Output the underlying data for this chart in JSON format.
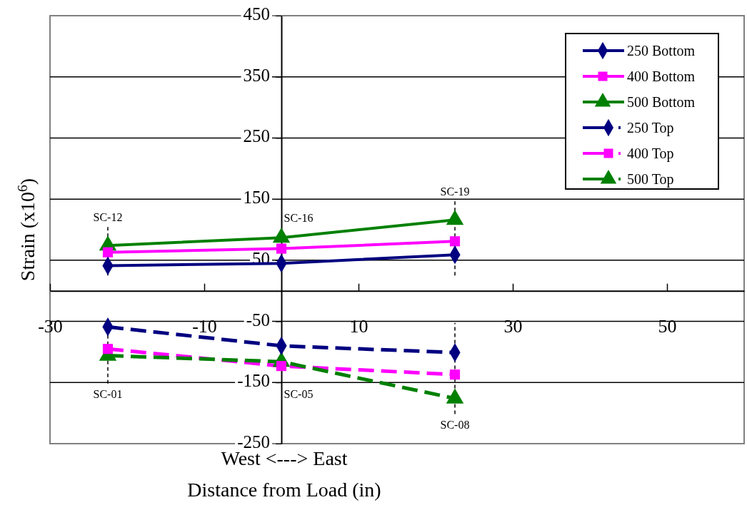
{
  "chart_data": {
    "type": "line",
    "xlabel": "Distance from Load (in)",
    "ylabel": "Strain (x10$^{6}$)",
    "x": [
      -22.5,
      0,
      22.5
    ],
    "xlim": [
      -30,
      60
    ],
    "xticks": [
      -30,
      -10,
      10,
      30,
      50
    ],
    "ylim": [
      -250,
      450
    ],
    "yticks": [
      450,
      350,
      250,
      150,
      50,
      -50,
      -150,
      -250
    ],
    "grid": "y",
    "legend": "top right",
    "series": [
      {
        "name": "250 Bottom",
        "color": "#000080",
        "marker": "diamond",
        "line_style": "solid",
        "values": [
          41,
          45,
          59
        ]
      },
      {
        "name": "400 Bottom",
        "color": "#ff00ff",
        "marker": "square",
        "line_style": "solid",
        "values": [
          63,
          69,
          81
        ]
      },
      {
        "name": "500 Bottom",
        "color": "#008000",
        "marker": "triangle",
        "line_style": "solid",
        "values": [
          74,
          87,
          116
        ]
      },
      {
        "name": "250 Top",
        "color": "#000080",
        "marker": "diamond",
        "line_style": "dashed",
        "values": [
          -59,
          -90,
          -101
        ]
      },
      {
        "name": "400 Top",
        "color": "#ff00ff",
        "marker": "square",
        "line_style": "dashed",
        "values": [
          -95,
          -123,
          -137
        ]
      },
      {
        "name": "500 Top",
        "color": "#008000",
        "marker": "triangle",
        "line_style": "dashed",
        "values": [
          -106,
          -116,
          -176
        ]
      }
    ],
    "annotations": [
      {
        "text": "SC-12",
        "x": -22.5,
        "y": 74
      },
      {
        "text": "SC-16",
        "x": 0,
        "y": 87
      },
      {
        "text": "SC-19",
        "x": 22.5,
        "y": 116
      },
      {
        "text": "SC-01",
        "x": -22.5,
        "y": -106
      },
      {
        "text": "SC-05",
        "x": 0,
        "y": -123
      },
      {
        "text": "SC-08",
        "x": 22.5,
        "y": -176
      },
      "West <---> East"
    ]
  }
}
